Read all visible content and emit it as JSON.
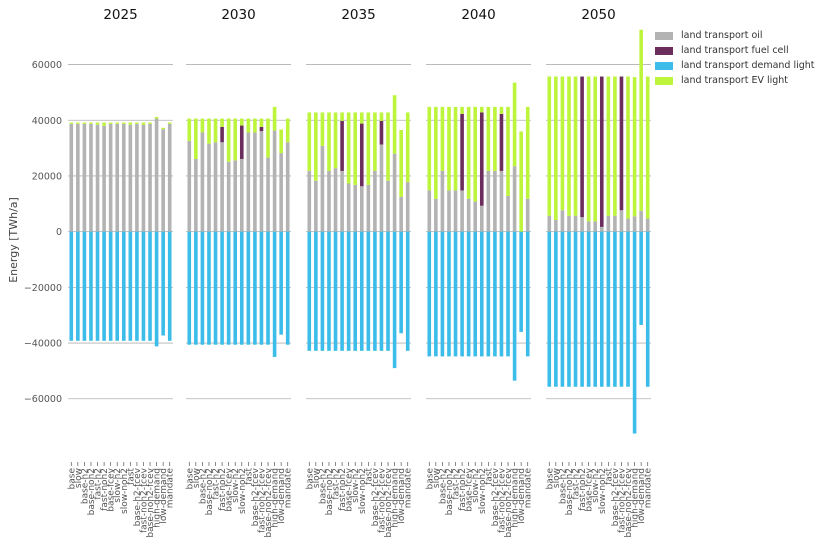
{
  "chart_data": {
    "type": "bar",
    "ylabel": "Energy [TWh/a]",
    "ylim": [
      -82000,
      76000
    ],
    "yticks": [
      -60000,
      -40000,
      -20000,
      0,
      20000,
      40000,
      60000
    ],
    "yticklabels": [
      "−60000",
      "−40000",
      "−20000",
      "0",
      "20000",
      "40000",
      "60000"
    ],
    "grid": true,
    "legend_position": "top-right",
    "categories": [
      "base",
      "slow",
      "base-h2",
      "base-noh2",
      "fast-h2",
      "fast-noh2",
      "base-fcev",
      "slow-h2",
      "slow-noh2",
      "fast",
      "base-h2-fcev",
      "fast-noh2-fcev",
      "base-noh2-fcev",
      "high-demand",
      "low-demand",
      "mandate"
    ],
    "series_order": [
      "land transport oil",
      "land transport fuel cell",
      "land transport demand light",
      "land transport EV light"
    ],
    "colors": {
      "land transport oil": "#b3b3b3",
      "land transport fuel cell": "#6b2d5c",
      "land transport demand light": "#3cbde9",
      "land transport EV light": "#bdf43c"
    },
    "panels": [
      {
        "title": "2025",
        "series": [
          {
            "name": "land transport EV light",
            "values": [
              500,
              500,
              500,
              500,
              800,
              1200,
              500,
              500,
              500,
              800,
              500,
              800,
              500,
              600,
              500,
              500
            ]
          },
          {
            "name": "land transport fuel cell",
            "values": [
              0,
              0,
              0,
              0,
              0,
              0,
              0,
              0,
              0,
              0,
              0,
              0,
              0,
              0,
              0,
              0
            ]
          },
          {
            "name": "land transport oil",
            "values": [
              38700,
              38700,
              38700,
              38700,
              38400,
              38000,
              38700,
              38700,
              38700,
              38400,
              38700,
              38400,
              38700,
              40600,
              36800,
              38700
            ]
          },
          {
            "name": "land transport demand light",
            "values": [
              -39200,
              -39200,
              -39200,
              -39200,
              -39200,
              -39200,
              -39200,
              -39200,
              -39200,
              -39200,
              -39200,
              -39200,
              -39200,
              -41200,
              -37300,
              -39200
            ]
          }
        ]
      },
      {
        "title": "2030",
        "series": [
          {
            "name": "land transport EV light",
            "values": [
              8000,
              14500,
              5000,
              9000,
              8500,
              3000,
              15500,
              15000,
              2500,
              5000,
              5000,
              3000,
              14000,
              8500,
              8500,
              8500
            ]
          },
          {
            "name": "land transport fuel cell",
            "values": [
              0,
              0,
              0,
              0,
              0,
              5500,
              0,
              0,
              12000,
              0,
              0,
              1500,
              0,
              0,
              0,
              0
            ]
          },
          {
            "name": "land transport oil",
            "values": [
              32600,
              26100,
              35600,
              31600,
              32100,
              32100,
              25100,
              25600,
              26100,
              35600,
              35600,
              36100,
              26600,
              36300,
              28200,
              32100
            ]
          },
          {
            "name": "land transport demand light",
            "values": [
              -40600,
              -40600,
              -40600,
              -40600,
              -40600,
              -40600,
              -40600,
              -40600,
              -40600,
              -40600,
              -40600,
              -40600,
              -40600,
              -45000,
              -37000,
              -40600
            ]
          }
        ]
      },
      {
        "title": "2035",
        "series": [
          {
            "name": "land transport EV light",
            "values": [
              21000,
              24500,
              12000,
              21000,
              20000,
              3000,
              25500,
              26000,
              4000,
              26000,
              21000,
              3000,
              24500,
              21000,
              24000,
              25000
            ]
          },
          {
            "name": "land transport fuel cell",
            "values": [
              0,
              0,
              0,
              0,
              0,
              18000,
              0,
              0,
              22500,
              0,
              0,
              8500,
              0,
              0,
              0,
              0
            ]
          },
          {
            "name": "land transport oil",
            "values": [
              21800,
              18300,
              30800,
              21800,
              22800,
              21800,
              17300,
              16800,
              16300,
              16800,
              21800,
              31300,
              18300,
              28000,
              12500,
              17800
            ]
          },
          {
            "name": "land transport demand light",
            "values": [
              -42800,
              -42800,
              -42800,
              -42800,
              -42800,
              -42800,
              -42800,
              -42800,
              -42800,
              -42800,
              -42800,
              -42800,
              -42800,
              -49000,
              -36500,
              -42800
            ]
          }
        ]
      },
      {
        "title": "2040",
        "series": [
          {
            "name": "land transport EV light",
            "values": [
              30000,
              33000,
              23000,
              30000,
              30000,
              2500,
              33000,
              34000,
              2000,
              23000,
              23000,
              2500,
              32000,
              30000,
              36000,
              33000
            ]
          },
          {
            "name": "land transport fuel cell",
            "values": [
              0,
              0,
              0,
              0,
              0,
              27500,
              0,
              0,
              33500,
              0,
              0,
              20500,
              0,
              0,
              0,
              0
            ]
          },
          {
            "name": "land transport oil",
            "values": [
              14800,
              11800,
              21800,
              14800,
              14800,
              14800,
              11800,
              10800,
              9300,
              21800,
              21800,
              21800,
              12800,
              23500,
              0,
              11800
            ]
          },
          {
            "name": "land transport demand light",
            "values": [
              -44800,
              -44800,
              -44800,
              -44800,
              -44800,
              -44800,
              -44800,
              -44800,
              -44800,
              -44800,
              -44800,
              -44800,
              -44800,
              -53500,
              -36000,
              -44800
            ]
          }
        ]
      },
      {
        "title": "2050",
        "series": [
          {
            "name": "land transport EV light",
            "values": [
              50000,
              51500,
              48000,
              50000,
              50000,
              0,
              52000,
              52000,
              0,
              50000,
              50000,
              0,
              51000,
              50000,
              65000,
              51000
            ]
          },
          {
            "name": "land transport fuel cell",
            "values": [
              0,
              0,
              0,
              0,
              0,
              50500,
              0,
              0,
              54000,
              0,
              0,
              48000,
              0,
              0,
              0,
              0
            ]
          },
          {
            "name": "land transport oil",
            "values": [
              5700,
              4200,
              7700,
              5700,
              5700,
              5200,
              3700,
              3700,
              1700,
              5700,
              5700,
              7700,
              4700,
              5500,
              7500,
              4700
            ]
          },
          {
            "name": "land transport demand light",
            "values": [
              -55700,
              -55700,
              -55700,
              -55700,
              -55700,
              -55700,
              -55700,
              -55700,
              -55700,
              -55700,
              -55700,
              -55700,
              -55700,
              -72500,
              -33500,
              -55700
            ]
          }
        ]
      }
    ]
  }
}
